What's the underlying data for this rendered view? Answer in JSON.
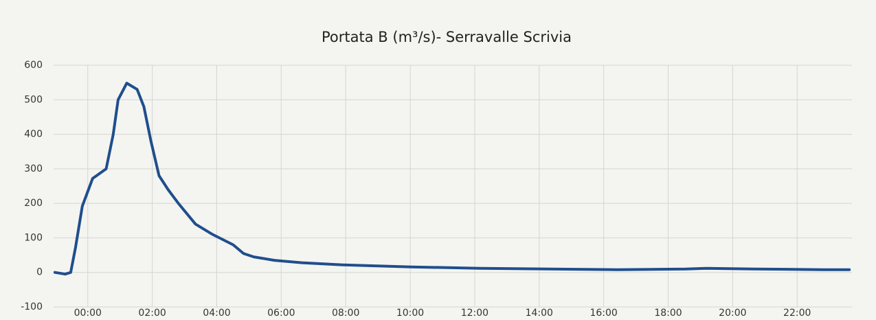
{
  "chart_data": {
    "type": "line",
    "title": "Portata B (m³/s)- Serravalle Scrivia",
    "x": [
      -1.02,
      -0.7,
      -0.53,
      -0.38,
      -0.17,
      0.15,
      0.57,
      0.79,
      0.94,
      1.21,
      1.53,
      1.74,
      1.96,
      2.21,
      2.49,
      2.81,
      3.34,
      3.87,
      4.51,
      4.83,
      5.15,
      5.79,
      6.64,
      7.91,
      10.04,
      12.17,
      14.3,
      16.43,
      18.55,
      19.19,
      20.68,
      22.81,
      23.62
    ],
    "series": [
      {
        "name": "Portata B",
        "color": "#1f4e8c",
        "values": [
          0,
          -5,
          0,
          72,
          192,
          272,
          300,
          400,
          500,
          548,
          530,
          480,
          380,
          280,
          240,
          200,
          140,
          110,
          80,
          55,
          45,
          35,
          28,
          22,
          16,
          12,
          10,
          8,
          10,
          12,
          10,
          8,
          8
        ]
      }
    ],
    "xlim": [
      -1.06,
      23.7
    ],
    "xticks": [
      {
        "value": 0,
        "label": "00:00"
      },
      {
        "value": 2,
        "label": "02:00"
      },
      {
        "value": 4,
        "label": "04:00"
      },
      {
        "value": 6,
        "label": "06:00"
      },
      {
        "value": 8,
        "label": "08:00"
      },
      {
        "value": 10,
        "label": "10:00"
      },
      {
        "value": 12,
        "label": "12:00"
      },
      {
        "value": 14,
        "label": "14:00"
      },
      {
        "value": 16,
        "label": "16:00"
      },
      {
        "value": 18,
        "label": "18:00"
      },
      {
        "value": 20,
        "label": "20:00"
      },
      {
        "value": 22,
        "label": "22:00"
      }
    ],
    "ylim": [
      -100,
      600
    ],
    "yticks": [
      -100,
      0,
      100,
      200,
      300,
      400,
      500,
      600
    ],
    "grid": true
  }
}
